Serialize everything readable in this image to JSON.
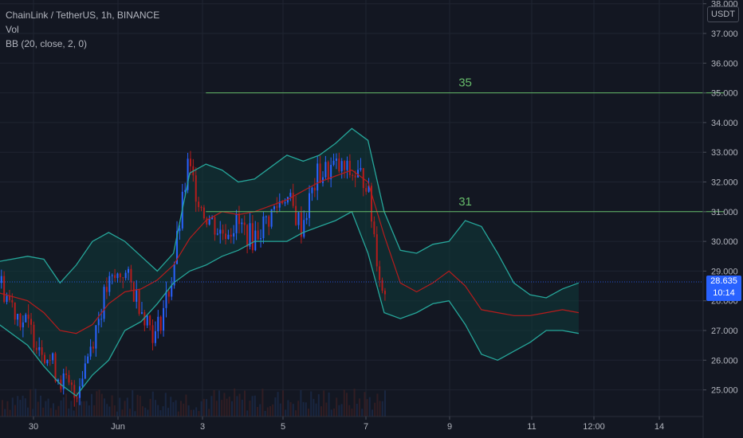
{
  "legend": {
    "symbol_line": "ChainLink / TetherUS, 1h, BINANCE",
    "volume_label": "Vol",
    "bb_label": "BB (20, close, 2, 0)"
  },
  "price_axis": {
    "unit": "USDT",
    "current_price": "28.635",
    "countdown": "10:14"
  },
  "colors": {
    "background": "#131722",
    "grid": "#1f2431",
    "bb_band": "#26a69a",
    "bb_fill": "#0f3a3a",
    "bb_basis": "#b71c1c",
    "candle_up": "#2962ff",
    "candle_down": "#b71c1c",
    "level_line": "#66bb6a",
    "price_line": "#2962ff"
  },
  "chart_data": {
    "type": "line",
    "title": "ChainLink / TetherUS, 1h, BINANCE",
    "y_ticks": [
      "25.000",
      "26.000",
      "27.000",
      "28.000",
      "29.000",
      "30.000",
      "31.000",
      "32.000",
      "33.000",
      "34.000",
      "35.000",
      "36.000",
      "37.000",
      "38.000"
    ],
    "x_ticks": [
      "30",
      "Jun",
      "3",
      "5",
      "7",
      "9",
      "11",
      "12:00",
      "14"
    ],
    "ylim": [
      24.0,
      38.6
    ],
    "grid": true,
    "series": [
      {
        "name": "BB (20, close, 2, 0)",
        "upper": [
          [
            0,
            29.3
          ],
          [
            2,
            29.5
          ],
          [
            3,
            29.4
          ],
          [
            4,
            28.6
          ],
          [
            5,
            29.2
          ],
          [
            6,
            30.0
          ],
          [
            7,
            30.3
          ],
          [
            8,
            30.0
          ],
          [
            9,
            29.5
          ],
          [
            10,
            29.0
          ],
          [
            11,
            29.6
          ],
          [
            12,
            32.3
          ],
          [
            13,
            32.6
          ],
          [
            14,
            32.4
          ],
          [
            15,
            32.0
          ],
          [
            16,
            32.1
          ],
          [
            17,
            32.5
          ],
          [
            18,
            32.9
          ],
          [
            19,
            32.7
          ],
          [
            20,
            32.9
          ],
          [
            21,
            33.3
          ],
          [
            22,
            33.8
          ],
          [
            23,
            33.4
          ],
          [
            24,
            31.0
          ],
          [
            25,
            29.7
          ],
          [
            26,
            29.6
          ],
          [
            27,
            29.9
          ],
          [
            28,
            30.0
          ],
          [
            29,
            30.7
          ],
          [
            30,
            30.5
          ],
          [
            31,
            29.6
          ],
          [
            32,
            28.6
          ],
          [
            33,
            28.2
          ],
          [
            34,
            28.1
          ],
          [
            35,
            28.4
          ],
          [
            36,
            28.6
          ]
        ],
        "basis": [
          [
            0,
            28.3
          ],
          [
            2,
            28.0
          ],
          [
            3,
            27.6
          ],
          [
            4,
            27.0
          ],
          [
            5,
            26.9
          ],
          [
            6,
            27.2
          ],
          [
            7,
            27.9
          ],
          [
            8,
            28.3
          ],
          [
            9,
            28.4
          ],
          [
            10,
            28.7
          ],
          [
            11,
            29.2
          ],
          [
            12,
            30.1
          ],
          [
            13,
            30.7
          ],
          [
            14,
            31.0
          ],
          [
            15,
            30.9
          ],
          [
            16,
            31.0
          ],
          [
            17,
            31.2
          ],
          [
            18,
            31.4
          ],
          [
            19,
            31.7
          ],
          [
            20,
            32.0
          ],
          [
            21,
            32.2
          ],
          [
            22,
            32.4
          ],
          [
            23,
            32.0
          ],
          [
            24,
            30.2
          ],
          [
            25,
            28.6
          ],
          [
            26,
            28.3
          ],
          [
            27,
            28.6
          ],
          [
            28,
            29.0
          ],
          [
            29,
            28.5
          ],
          [
            30,
            27.7
          ],
          [
            31,
            27.6
          ],
          [
            32,
            27.5
          ],
          [
            33,
            27.5
          ],
          [
            34,
            27.6
          ],
          [
            35,
            27.7
          ],
          [
            36,
            27.6
          ]
        ],
        "lower": [
          [
            0,
            27.3
          ],
          [
            2,
            26.5
          ],
          [
            3,
            25.8
          ],
          [
            4,
            25.2
          ],
          [
            5,
            24.8
          ],
          [
            6,
            25.5
          ],
          [
            7,
            26.0
          ],
          [
            8,
            27.0
          ],
          [
            9,
            27.3
          ],
          [
            10,
            27.9
          ],
          [
            11,
            28.6
          ],
          [
            12,
            29.0
          ],
          [
            13,
            29.2
          ],
          [
            14,
            29.5
          ],
          [
            15,
            29.7
          ],
          [
            16,
            30.0
          ],
          [
            17,
            30.0
          ],
          [
            18,
            30.0
          ],
          [
            19,
            30.3
          ],
          [
            20,
            30.5
          ],
          [
            21,
            30.7
          ],
          [
            22,
            31.0
          ],
          [
            23,
            29.6
          ],
          [
            24,
            27.6
          ],
          [
            25,
            27.4
          ],
          [
            26,
            27.6
          ],
          [
            27,
            27.9
          ],
          [
            28,
            28.0
          ],
          [
            29,
            27.2
          ],
          [
            30,
            26.2
          ],
          [
            31,
            26.0
          ],
          [
            32,
            26.3
          ],
          [
            33,
            26.6
          ],
          [
            34,
            27.0
          ],
          [
            35,
            27.0
          ],
          [
            36,
            26.9
          ]
        ]
      }
    ],
    "price_path": [
      [
        0,
        29.1
      ],
      [
        1,
        28.0
      ],
      [
        2,
        27.2
      ],
      [
        3,
        26.5
      ],
      [
        4,
        25.5
      ],
      [
        5,
        24.8
      ],
      [
        6,
        26.5
      ],
      [
        7,
        28.4
      ],
      [
        8,
        29.0
      ],
      [
        9,
        28.0
      ],
      [
        10,
        26.8
      ],
      [
        11,
        28.7
      ],
      [
        12,
        32.5
      ],
      [
        13,
        31.0
      ],
      [
        14,
        30.3
      ],
      [
        15,
        30.6
      ],
      [
        16,
        30.1
      ],
      [
        17,
        30.8
      ],
      [
        18,
        31.6
      ],
      [
        19,
        30.5
      ],
      [
        20,
        32.2
      ],
      [
        21,
        32.5
      ],
      [
        22,
        32.3
      ],
      [
        23,
        32.1
      ],
      [
        24,
        28.3
      ],
      [
        25,
        28.5
      ],
      [
        26,
        29.0
      ],
      [
        27,
        29.5
      ],
      [
        28,
        29.3
      ],
      [
        29,
        28.0
      ],
      [
        30,
        27.4
      ],
      [
        31,
        26.5
      ],
      [
        32,
        27.4
      ],
      [
        33,
        27.5
      ],
      [
        34,
        27.3
      ],
      [
        35,
        27.9
      ],
      [
        36,
        28.1
      ],
      [
        37,
        28.6
      ]
    ],
    "levels": [
      {
        "value": 35,
        "label": "35",
        "from_x": 13.0,
        "to_x": 45.0
      },
      {
        "value": 31,
        "label": "31",
        "from_x": 13.0,
        "to_x": 45.0
      }
    ],
    "current_price": 28.635
  }
}
